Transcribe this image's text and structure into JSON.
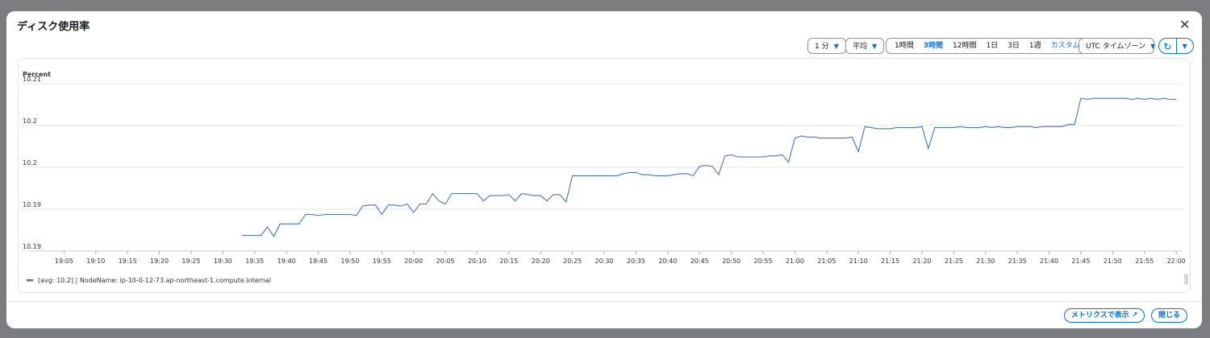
{
  "title": "ディスク使用率",
  "toolbar": {
    "period": "1 分",
    "statistic": "平均",
    "ranges": [
      "1時間",
      "3時間",
      "12時間",
      "1日",
      "3日",
      "1週",
      "カスタム"
    ],
    "timezone": "UTC タイムゾーン"
  },
  "chart_data": {
    "type": "line",
    "y_label": "Percent",
    "x": [
      "19:33",
      "19:34",
      "19:35",
      "19:36",
      "19:37",
      "19:38",
      "19:39",
      "19:40",
      "19:41",
      "19:42",
      "19:43",
      "19:44",
      "19:45",
      "19:46",
      "19:47",
      "19:48",
      "19:49",
      "19:50",
      "19:51",
      "19:52",
      "19:53",
      "19:54",
      "19:55",
      "19:56",
      "19:57",
      "19:58",
      "19:59",
      "20:00",
      "20:01",
      "20:02",
      "20:03",
      "20:04",
      "20:05",
      "20:06",
      "20:07",
      "20:08",
      "20:09",
      "20:10",
      "20:11",
      "20:12",
      "20:13",
      "20:14",
      "20:15",
      "20:16",
      "20:17",
      "20:18",
      "20:19",
      "20:20",
      "20:21",
      "20:22",
      "20:23",
      "20:24",
      "20:25",
      "20:26",
      "20:27",
      "20:28",
      "20:29",
      "20:30",
      "20:31",
      "20:32",
      "20:33",
      "20:34",
      "20:35",
      "20:36",
      "20:37",
      "20:38",
      "20:39",
      "20:40",
      "20:41",
      "20:42",
      "20:43",
      "20:44",
      "20:45",
      "20:46",
      "20:47",
      "20:48",
      "20:49",
      "20:50",
      "20:51",
      "20:52",
      "20:53",
      "20:54",
      "20:55",
      "20:56",
      "20:57",
      "20:58",
      "20:59",
      "21:00",
      "21:01",
      "21:02",
      "21:03",
      "21:04",
      "21:05",
      "21:06",
      "21:07",
      "21:08",
      "21:09",
      "21:10",
      "21:11",
      "21:12",
      "21:13",
      "21:14",
      "21:15",
      "21:16",
      "21:17",
      "21:18",
      "21:19",
      "21:20",
      "21:21",
      "21:22",
      "21:23",
      "21:24",
      "21:25",
      "21:26",
      "21:27",
      "21:28",
      "21:29",
      "21:30",
      "21:31",
      "21:32",
      "21:33",
      "21:34",
      "21:35",
      "21:36",
      "21:37",
      "21:38",
      "21:39",
      "21:40",
      "21:41",
      "21:42",
      "21:43",
      "21:44",
      "21:45",
      "21:46",
      "21:47",
      "21:48",
      "21:49",
      "21:50",
      "21:51",
      "21:52",
      "21:53",
      "21:54",
      "21:55",
      "21:56",
      "21:57",
      "21:58",
      "21:59",
      "22:00"
    ],
    "series": [
      {
        "name": "[avg: 10.2] | NodeName: ip-10-0-12-73.ap-northeast-1.compute.internal",
        "color": "#4b74b4",
        "values": [
          10.1915,
          10.1915,
          10.1915,
          10.1915,
          10.1923,
          10.1914,
          10.1926,
          10.1926,
          10.1926,
          10.1926,
          10.1935,
          10.1935,
          10.1934,
          10.1935,
          10.1935,
          10.1935,
          10.1935,
          10.1935,
          10.1934,
          10.1943,
          10.1944,
          10.1944,
          10.1935,
          10.1944,
          10.1944,
          10.1943,
          10.1945,
          10.1937,
          10.1945,
          10.1945,
          10.1955,
          10.1948,
          10.1945,
          10.1955,
          10.1955,
          10.1955,
          10.1955,
          10.1955,
          10.1948,
          10.1953,
          10.1953,
          10.1953,
          10.1954,
          10.1948,
          10.1955,
          10.1954,
          10.1953,
          10.1953,
          10.1948,
          10.1954,
          10.1954,
          10.1947,
          10.1972,
          10.1972,
          10.1972,
          10.1972,
          10.1972,
          10.1972,
          10.1972,
          10.1972,
          10.1974,
          10.1975,
          10.1975,
          10.1973,
          10.1973,
          10.1972,
          10.1972,
          10.1972,
          10.1973,
          10.1974,
          10.1974,
          10.1972,
          10.1981,
          10.1982,
          10.1981,
          10.1973,
          10.1991,
          10.1992,
          10.199,
          10.199,
          10.199,
          10.199,
          10.199,
          10.1991,
          10.1991,
          10.1992,
          10.1985,
          10.2008,
          10.201,
          10.2009,
          10.2009,
          10.2008,
          10.2008,
          10.2008,
          10.2008,
          10.2008,
          10.2009,
          10.1995,
          10.2019,
          10.2018,
          10.2017,
          10.2017,
          10.2017,
          10.2018,
          10.2018,
          10.2018,
          10.2018,
          10.2019,
          10.1998,
          10.2018,
          10.2018,
          10.2018,
          10.2018,
          10.2019,
          10.2018,
          10.2018,
          10.2018,
          10.2019,
          10.2018,
          10.2019,
          10.2018,
          10.2018,
          10.2019,
          10.2019,
          10.2019,
          10.2018,
          10.2019,
          10.2019,
          10.2019,
          10.2019,
          10.2021,
          10.2021,
          10.2046,
          10.2045,
          10.2046,
          10.2046,
          10.2046,
          10.2046,
          10.2046,
          10.2046,
          10.2045,
          10.2046,
          10.2045,
          10.2046,
          10.2045,
          10.2046,
          10.2045,
          10.2045
        ]
      }
    ],
    "xlim": [
      "19:00",
      "22:01"
    ],
    "xticks": [
      "19:05",
      "19:10",
      "19:15",
      "19:20",
      "19:25",
      "19:30",
      "19:35",
      "19:40",
      "19:45",
      "19:50",
      "19:55",
      "20:00",
      "20:05",
      "20:10",
      "20:15",
      "20:20",
      "20:25",
      "20:30",
      "20:35",
      "20:40",
      "20:45",
      "20:50",
      "20:55",
      "21:00",
      "21:05",
      "21:10",
      "21:15",
      "21:20",
      "21:25",
      "21:30",
      "21:35",
      "21:40",
      "21:45",
      "21:50",
      "21:55",
      "22:00"
    ],
    "ylim": [
      10.19,
      10.206
    ],
    "yticks": [
      10.19,
      {
        "value": 10.194,
        "label": "10.19"
      },
      {
        "value": 10.198,
        "label": "10.2"
      },
      {
        "value": 10.202,
        "label": "10.2"
      },
      {
        "value": 10.206,
        "label": "10.21"
      }
    ],
    "grid": true
  },
  "footer": {
    "buttons": [
      "メトリクスで表示",
      "閉じる"
    ]
  }
}
